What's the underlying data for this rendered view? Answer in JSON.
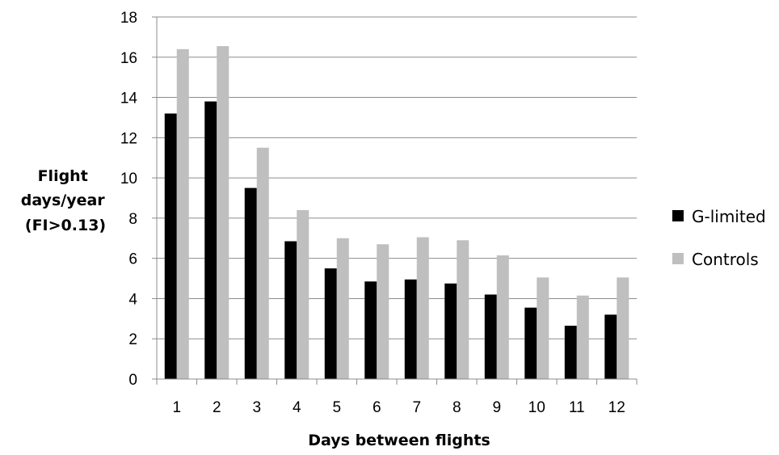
{
  "chart_data": {
    "type": "bar",
    "categories": [
      "1",
      "2",
      "3",
      "4",
      "5",
      "6",
      "7",
      "8",
      "9",
      "10",
      "11",
      "12"
    ],
    "series": [
      {
        "name": "G-limited",
        "color": "#000000",
        "values": [
          13.2,
          13.8,
          9.5,
          6.85,
          5.5,
          4.85,
          4.95,
          4.75,
          4.2,
          3.55,
          2.65,
          3.2
        ]
      },
      {
        "name": "Controls",
        "color": "#bfbfbf",
        "values": [
          16.4,
          16.55,
          11.5,
          8.4,
          7.0,
          6.7,
          7.05,
          6.9,
          6.15,
          5.05,
          4.15,
          5.05
        ]
      }
    ],
    "xlabel": "Days between flights",
    "ylabel": [
      "Flight",
      "days/year",
      "(FI>0.13)"
    ],
    "ylim": [
      0,
      18
    ],
    "yticks": [
      "0",
      "2",
      "4",
      "6",
      "8",
      "10",
      "12",
      "14",
      "16",
      "18"
    ],
    "grid": true,
    "legend": "right"
  }
}
